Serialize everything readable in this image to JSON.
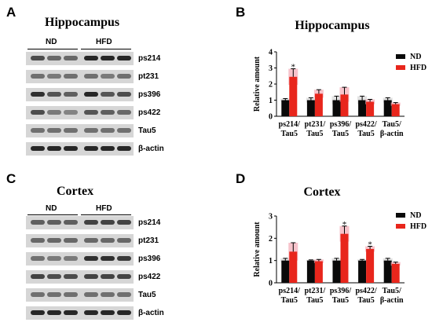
{
  "panels": [
    {
      "letter": "A",
      "title": "Hippocampus",
      "groups": [
        "ND",
        "HFD"
      ],
      "rows": [
        {
          "label": "ps214",
          "intensity": [
            0.75,
            0.6,
            0.6,
            0.95,
            0.95,
            0.95
          ]
        },
        {
          "label": "pt231",
          "intensity": [
            0.55,
            0.5,
            0.55,
            0.55,
            0.5,
            0.55
          ]
        },
        {
          "label": "ps396",
          "intensity": [
            0.9,
            0.7,
            0.65,
            0.95,
            0.7,
            0.75
          ]
        },
        {
          "label": "ps422",
          "intensity": [
            0.75,
            0.5,
            0.45,
            0.7,
            0.65,
            0.6
          ]
        },
        {
          "label": "Tau5",
          "intensity": [
            0.55,
            0.55,
            0.55,
            0.55,
            0.55,
            0.55
          ]
        },
        {
          "label": "β-actin",
          "intensity": [
            0.95,
            0.95,
            0.95,
            0.95,
            0.95,
            0.95
          ]
        }
      ]
    },
    {
      "letter": "C",
      "title": "Cortex",
      "groups": [
        "ND",
        "HFD"
      ],
      "rows": [
        {
          "label": "ps214",
          "intensity": [
            0.65,
            0.65,
            0.65,
            0.8,
            0.8,
            0.8
          ]
        },
        {
          "label": "pt231",
          "intensity": [
            0.6,
            0.6,
            0.6,
            0.6,
            0.6,
            0.6
          ]
        },
        {
          "label": "ps396",
          "intensity": [
            0.55,
            0.5,
            0.5,
            0.9,
            0.9,
            0.85
          ]
        },
        {
          "label": "ps422",
          "intensity": [
            0.8,
            0.75,
            0.75,
            0.8,
            0.8,
            0.8
          ]
        },
        {
          "label": "Tau5",
          "intensity": [
            0.55,
            0.55,
            0.55,
            0.55,
            0.55,
            0.55
          ]
        },
        {
          "label": "β-actin",
          "intensity": [
            0.95,
            0.95,
            0.95,
            0.95,
            0.95,
            0.95
          ]
        }
      ]
    }
  ],
  "colors": {
    "ND": "#0a0a0a",
    "HFD": "#e8261c",
    "error_ND": "#d6d6d6",
    "error_HFD": "#f4a9b5",
    "band": "#1e1e1e"
  },
  "chart_data": [
    {
      "letter": "B",
      "type": "bar",
      "title": "Hippocampus",
      "ylabel": "Relative amount",
      "ylim": [
        0,
        4
      ],
      "yticks": [
        0,
        1,
        2,
        3,
        4
      ],
      "categories": [
        [
          "ps214/",
          "Tau5"
        ],
        [
          "pt231/",
          "Tau5"
        ],
        [
          "ps396/",
          "Tau5"
        ],
        [
          "ps422/",
          "Tau5"
        ],
        [
          "Tau5/",
          "β-actin"
        ]
      ],
      "series": [
        {
          "name": "ND",
          "values": [
            1.0,
            1.0,
            1.0,
            1.0,
            1.0
          ],
          "errors": [
            0.1,
            0.15,
            0.25,
            0.25,
            0.15
          ]
        },
        {
          "name": "HFD",
          "values": [
            2.45,
            1.4,
            1.35,
            0.9,
            0.75
          ],
          "errors": [
            0.5,
            0.25,
            0.45,
            0.15,
            0.1
          ]
        }
      ],
      "annotations": [
        {
          "category": 0,
          "series": "HFD",
          "text": "*"
        }
      ],
      "legend": "top-right"
    },
    {
      "letter": "D",
      "type": "bar",
      "title": "Cortex",
      "ylabel": "Relative amount",
      "ylim": [
        0,
        3
      ],
      "yticks": [
        0,
        1,
        2,
        3
      ],
      "categories": [
        [
          "ps214/",
          "Tau5"
        ],
        [
          "pt231/",
          "Tau5"
        ],
        [
          "ps396/",
          "Tau5"
        ],
        [
          "ps422/",
          "Tau5"
        ],
        [
          "Tau5/",
          "β-actin"
        ]
      ],
      "series": [
        {
          "name": "ND",
          "values": [
            1.0,
            1.0,
            1.0,
            1.0,
            1.0
          ],
          "errors": [
            0.1,
            0.03,
            0.1,
            0.05,
            0.1
          ]
        },
        {
          "name": "HFD",
          "values": [
            1.4,
            0.97,
            2.2,
            1.52,
            0.85
          ],
          "errors": [
            0.4,
            0.08,
            0.35,
            0.12,
            0.08
          ]
        }
      ],
      "annotations": [
        {
          "category": 2,
          "series": "HFD",
          "text": "*"
        },
        {
          "category": 3,
          "series": "HFD",
          "text": "*"
        }
      ],
      "legend": "top-right"
    }
  ]
}
